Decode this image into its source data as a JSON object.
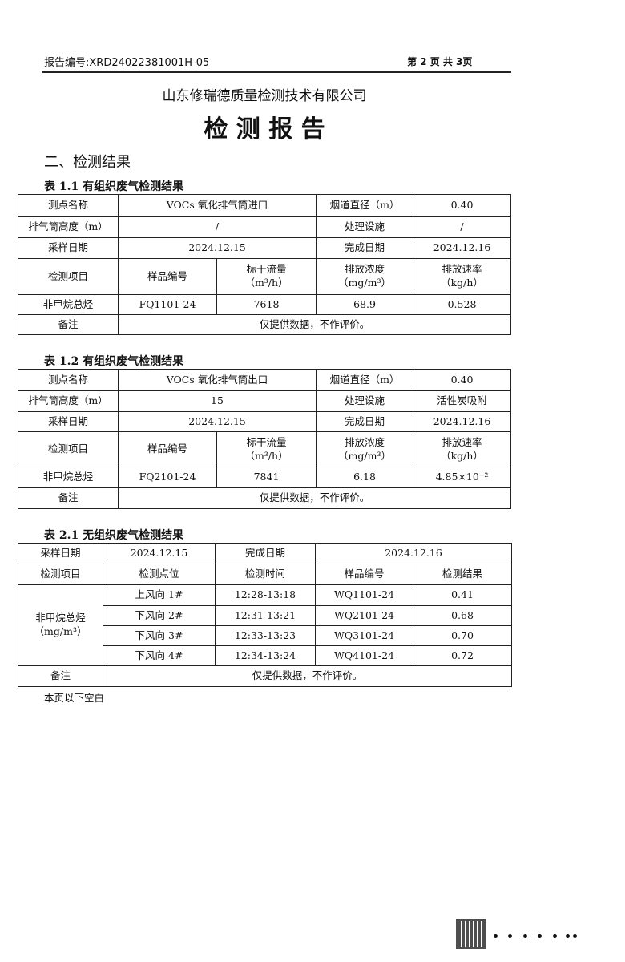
{
  "header": {
    "report_no": "报告编号:XRD24022381001H-05",
    "page": "第 2 页 共 3页"
  },
  "company": "山东修瑞德质量检测技术有限公司",
  "title": "检 测 报 告",
  "section": "二、检测结果",
  "t11": {
    "caption": "表 1.1 有组织废气检测结果",
    "point_label": "测点名称",
    "point": "VOCs 氧化排气筒进口",
    "dia_label": "烟道直径（m）",
    "dia": "0.40",
    "height_label": "排气筒高度（m）",
    "height": "/",
    "facility_label": "处理设施",
    "facility": "/",
    "sdate_label": "采样日期",
    "sdate": "2024.12.15",
    "cdate_label": "完成日期",
    "cdate": "2024.12.16",
    "h_item": "检测项目",
    "h_sample": "样品编号",
    "h_flow": "标干流量",
    "h_flow_u": "（m³/h）",
    "h_conc": "排放浓度",
    "h_conc_u": "（mg/m³）",
    "h_rate": "排放速率",
    "h_rate_u": "（kg/h）",
    "item": "非甲烷总烃",
    "sample": "FQ1101-24",
    "flow": "7618",
    "conc": "68.9",
    "rate": "0.528",
    "note_label": "备注",
    "note": "仅提供数据，不作评价。"
  },
  "t12": {
    "caption": "表 1.2 有组织废气检测结果",
    "point_label": "测点名称",
    "point": "VOCs 氧化排气筒出口",
    "dia_label": "烟道直径（m）",
    "dia": "0.40",
    "height_label": "排气筒高度（m）",
    "height": "15",
    "facility_label": "处理设施",
    "facility": "活性炭吸附",
    "sdate_label": "采样日期",
    "sdate": "2024.12.15",
    "cdate_label": "完成日期",
    "cdate": "2024.12.16",
    "h_item": "检测项目",
    "h_sample": "样品编号",
    "h_flow": "标干流量",
    "h_flow_u": "（m³/h）",
    "h_conc": "排放浓度",
    "h_conc_u": "（mg/m³）",
    "h_rate": "排放速率",
    "h_rate_u": "（kg/h）",
    "item": "非甲烷总烃",
    "sample": "FQ2101-24",
    "flow": "7841",
    "conc": "6.18",
    "rate": "4.85×10⁻²",
    "note_label": "备注",
    "note": "仅提供数据，不作评价。"
  },
  "t21": {
    "caption": "表 2.1 无组织废气检测结果",
    "sdate_label": "采样日期",
    "sdate": "2024.12.15",
    "cdate_label": "完成日期",
    "cdate": "2024.12.16",
    "h_item": "检测项目",
    "h_point": "检测点位",
    "h_time": "检测时间",
    "h_sample": "样品编号",
    "h_result": "检测结果",
    "item": "非甲烷总烃",
    "item_u": "（mg/m³）",
    "rows": [
      {
        "point": "上风向 1#",
        "time": "12:28-13:18",
        "sample": "WQ1101-24",
        "result": "0.41"
      },
      {
        "point": "下风向 2#",
        "time": "12:31-13:21",
        "sample": "WQ2101-24",
        "result": "0.68"
      },
      {
        "point": "下风向 3#",
        "time": "12:33-13:23",
        "sample": "WQ3101-24",
        "result": "0.70"
      },
      {
        "point": "下风向 4#",
        "time": "12:34-13:24",
        "sample": "WQ4101-24",
        "result": "0.72"
      }
    ],
    "note_label": "备注",
    "note": "仅提供数据，不作评价。"
  },
  "footer_note": "本页以下空白"
}
